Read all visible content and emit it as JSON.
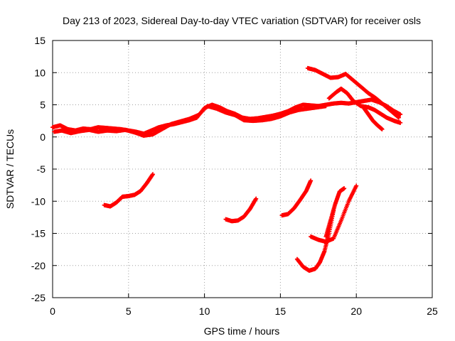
{
  "chart_data": {
    "type": "scatter",
    "title": "Day 213 of 2023, Sidereal Day-to-day VTEC variation (SDTVAR) for receiver osls",
    "xlabel": "GPS time / hours",
    "ylabel": "SDTVAR / TECUs",
    "xlim": [
      0,
      25
    ],
    "ylim": [
      -25,
      15
    ],
    "xticks": [
      0,
      5,
      10,
      15,
      20,
      25
    ],
    "yticks": [
      -25,
      -20,
      -15,
      -10,
      -5,
      0,
      5,
      10,
      15
    ],
    "grid": true,
    "color": "#ff0000",
    "marker": "plus",
    "series": [
      {
        "name": "main-band-a",
        "x": [
          0,
          0.5,
          1,
          1.5,
          2,
          2.5,
          3,
          3.5,
          4,
          4.5,
          5,
          5.5,
          6,
          6.5,
          7,
          7.5,
          8,
          8.5,
          9,
          9.5,
          10,
          10.5,
          11,
          11.5,
          12,
          12.5,
          13,
          13.5,
          14,
          14.5,
          15,
          15.5,
          16,
          16.5,
          17,
          17.5,
          18,
          18.5,
          19,
          19.5,
          20,
          20.5,
          21,
          21.5,
          22,
          22.5,
          22.9
        ],
        "y": [
          1.5,
          1.8,
          1.2,
          1.0,
          1.3,
          1.2,
          1.5,
          1.4,
          1.3,
          1.2,
          1.0,
          0.8,
          0.5,
          1.0,
          1.5,
          1.8,
          2.0,
          2.3,
          2.6,
          3.0,
          4.5,
          5.0,
          4.6,
          4.0,
          3.6,
          3.0,
          2.8,
          2.9,
          3.1,
          3.3,
          3.6,
          4.0,
          4.6,
          5.0,
          4.9,
          4.8,
          5.0,
          5.2,
          5.3,
          5.2,
          5.4,
          5.6,
          5.8,
          5.4,
          4.8,
          4.0,
          3.5
        ]
      },
      {
        "name": "main-band-b",
        "x": [
          0.1,
          0.6,
          1.2,
          1.8,
          2.4,
          3,
          3.6,
          4.2,
          4.8,
          5.4,
          6,
          6.6,
          7.2,
          7.8,
          8.4,
          9,
          9.6,
          10.2,
          10.8,
          11.4,
          12,
          12.6,
          13.2,
          13.8,
          14.4,
          15,
          15.6,
          16.2,
          16.8,
          17.4,
          18
        ],
        "y": [
          0.8,
          1.0,
          0.6,
          0.9,
          1.1,
          0.8,
          1.0,
          0.9,
          1.1,
          0.7,
          0.2,
          0.4,
          1.2,
          2.0,
          2.4,
          2.8,
          3.4,
          4.8,
          4.4,
          3.8,
          3.4,
          2.6,
          2.5,
          2.6,
          2.8,
          3.2,
          3.8,
          4.2,
          4.4,
          4.6,
          4.8
        ]
      },
      {
        "name": "descending-trace",
        "x": [
          16.8,
          17.3,
          17.8,
          18.3,
          18.8,
          19.3,
          19.8,
          20.3,
          20.8,
          21.3,
          21.8,
          22.3,
          22.8
        ],
        "y": [
          10.7,
          10.4,
          9.8,
          9.2,
          9.3,
          9.8,
          8.8,
          7.8,
          6.8,
          6.0,
          5.0,
          4.0,
          3.0
        ]
      },
      {
        "name": "loop-trace",
        "x": [
          18.2,
          18.7,
          19.0,
          19.4,
          19.8,
          20.3,
          20.8,
          21.2,
          21.6,
          22.0,
          22.5,
          22.9
        ],
        "y": [
          6.0,
          7.0,
          7.5,
          6.8,
          5.6,
          4.8,
          4.6,
          4.2,
          3.6,
          3.0,
          2.5,
          2.2
        ]
      },
      {
        "name": "tail-trace",
        "x": [
          20.5,
          20.8,
          21.1,
          21.4,
          21.7
        ],
        "y": [
          4.5,
          3.5,
          2.5,
          1.8,
          1.2
        ]
      },
      {
        "name": "low-arc-1",
        "x": [
          3.4,
          3.8,
          4.2,
          4.6,
          5.0,
          5.4,
          5.8,
          6.2,
          6.6
        ],
        "y": [
          -10.6,
          -10.8,
          -10.2,
          -9.3,
          -9.2,
          -9.0,
          -8.4,
          -7.2,
          -5.8
        ]
      },
      {
        "name": "low-arc-2",
        "x": [
          11.4,
          11.8,
          12.2,
          12.6,
          13.0,
          13.4
        ],
        "y": [
          -12.8,
          -13.1,
          -13.0,
          -12.4,
          -11.2,
          -9.6
        ]
      },
      {
        "name": "low-arc-3",
        "x": [
          15.1,
          15.5,
          15.9,
          16.3,
          16.7,
          17.0
        ],
        "y": [
          -12.2,
          -12.0,
          -11.1,
          -9.8,
          -8.4,
          -6.8
        ]
      },
      {
        "name": "low-arc-4",
        "x": [
          16.1,
          16.5,
          16.9,
          17.3,
          17.6,
          17.9,
          18.2,
          18.5
        ],
        "y": [
          -19.0,
          -20.2,
          -20.8,
          -20.5,
          -19.5,
          -17.8,
          -15.0,
          -11.5
        ]
      },
      {
        "name": "low-arc-5",
        "x": [
          17.0,
          17.5,
          18.0,
          18.5,
          19.0,
          19.5,
          20.0
        ],
        "y": [
          -15.5,
          -16.0,
          -16.3,
          -15.8,
          -13.0,
          -10.0,
          -7.6
        ]
      },
      {
        "name": "low-arc-6",
        "x": [
          18.0,
          18.3,
          18.6,
          18.9,
          19.2
        ],
        "y": [
          -15.5,
          -13.0,
          -10.5,
          -8.5,
          -8.0
        ]
      }
    ]
  }
}
